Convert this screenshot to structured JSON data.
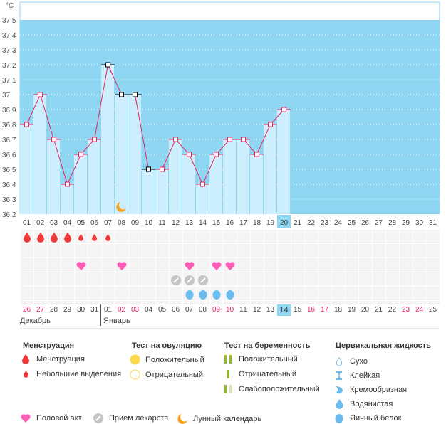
{
  "chart_data": {
    "type": "line",
    "title": "",
    "unit_label": "°C",
    "ylim": [
      36.2,
      37.5
    ],
    "y_ticks": [
      "37.5",
      "37.4",
      "37.3",
      "37.2",
      "37.1",
      "37",
      "36.9",
      "36.8",
      "36.7",
      "36.6",
      "36.5",
      "36.4",
      "36.3",
      "36.2"
    ],
    "x_ticks": [
      "01",
      "02",
      "03",
      "04",
      "05",
      "06",
      "07",
      "08",
      "09",
      "10",
      "11",
      "12",
      "13",
      "14",
      "15",
      "16",
      "17",
      "18",
      "19",
      "20",
      "21",
      "22",
      "23",
      "24",
      "25",
      "26",
      "27",
      "28",
      "29",
      "30",
      "31"
    ],
    "highlighted_day": "20",
    "series": [
      {
        "name": "Температура",
        "x": [
          "01",
          "02",
          "03",
          "04",
          "05",
          "06",
          "07",
          "08",
          "09",
          "10",
          "11",
          "12",
          "13",
          "14",
          "15",
          "16",
          "17",
          "18",
          "19",
          "20"
        ],
        "values": [
          36.8,
          37.0,
          36.7,
          36.4,
          36.6,
          36.7,
          37.2,
          37.0,
          37.0,
          36.5,
          36.5,
          36.7,
          36.6,
          36.4,
          36.6,
          36.7,
          36.7,
          36.6,
          36.8,
          36.9
        ],
        "excluded_days": [
          "07",
          "08",
          "09",
          "10"
        ]
      }
    ],
    "colors": {
      "line": "#e8245c",
      "bar": "#cdeefc",
      "bg": "#8fd6f2",
      "excluded_marker": "#000000"
    },
    "lunar_calendar_day": "08"
  },
  "symptoms": {
    "menstruation": {
      "days": [
        "01",
        "02",
        "03",
        "04"
      ],
      "color": "#f03a3a"
    },
    "spotting": {
      "days": [
        "05",
        "06",
        "07"
      ],
      "color": "#f03a3a"
    },
    "intercourse": {
      "days": [
        "05",
        "08",
        "13",
        "15",
        "16"
      ],
      "color": "#ff5cb8"
    },
    "medication": {
      "days": [
        "12",
        "13",
        "14"
      ],
      "color": "#c5c5c5"
    },
    "egg_white": {
      "days": [
        "13",
        "14",
        "15",
        "16"
      ],
      "color": "#6bbcee"
    }
  },
  "cycle_dates": [
    {
      "d": "26",
      "red": true
    },
    {
      "d": "27",
      "red": true
    },
    {
      "d": "28",
      "red": false
    },
    {
      "d": "29",
      "red": false
    },
    {
      "d": "30",
      "red": false
    },
    {
      "d": "31",
      "red": false
    },
    {
      "d": "01",
      "red": false
    },
    {
      "d": "02",
      "red": true
    },
    {
      "d": "03",
      "red": true
    },
    {
      "d": "04",
      "red": false
    },
    {
      "d": "05",
      "red": false
    },
    {
      "d": "06",
      "red": false
    },
    {
      "d": "07",
      "red": false
    },
    {
      "d": "08",
      "red": false
    },
    {
      "d": "09",
      "red": true
    },
    {
      "d": "10",
      "red": true
    },
    {
      "d": "11",
      "red": false
    },
    {
      "d": "12",
      "red": false
    },
    {
      "d": "13",
      "red": false
    },
    {
      "d": "14",
      "red": false,
      "today": true
    },
    {
      "d": "15",
      "red": false
    },
    {
      "d": "16",
      "red": true
    },
    {
      "d": "17",
      "red": true
    },
    {
      "d": "18",
      "red": false
    },
    {
      "d": "19",
      "red": false
    },
    {
      "d": "20",
      "red": false
    },
    {
      "d": "21",
      "red": false
    },
    {
      "d": "22",
      "red": false
    },
    {
      "d": "23",
      "red": true
    },
    {
      "d": "24",
      "red": true
    },
    {
      "d": "25",
      "red": false
    }
  ],
  "months": {
    "first": "Декабрь",
    "second": "Январь"
  },
  "legend": {
    "menstruation": {
      "title": "Менструация",
      "items": [
        "Менструация",
        "Небольшие выделения"
      ]
    },
    "ovulation": {
      "title": "Тест на овуляцию",
      "items": [
        "Положительный",
        "Отрицательный"
      ]
    },
    "pregnancy": {
      "title": "Тест на беременность",
      "items": [
        "Положительный",
        "Отрицательный",
        "Слабоположительный"
      ]
    },
    "cervical": {
      "title": "Цервикальная жидкость",
      "items": [
        "Сухо",
        "Клейкая",
        "Кремообразная",
        "Водянистая",
        "Яичный белок"
      ]
    },
    "other": [
      "Половой акт",
      "Прием лекарств",
      "Лунный календарь"
    ]
  }
}
